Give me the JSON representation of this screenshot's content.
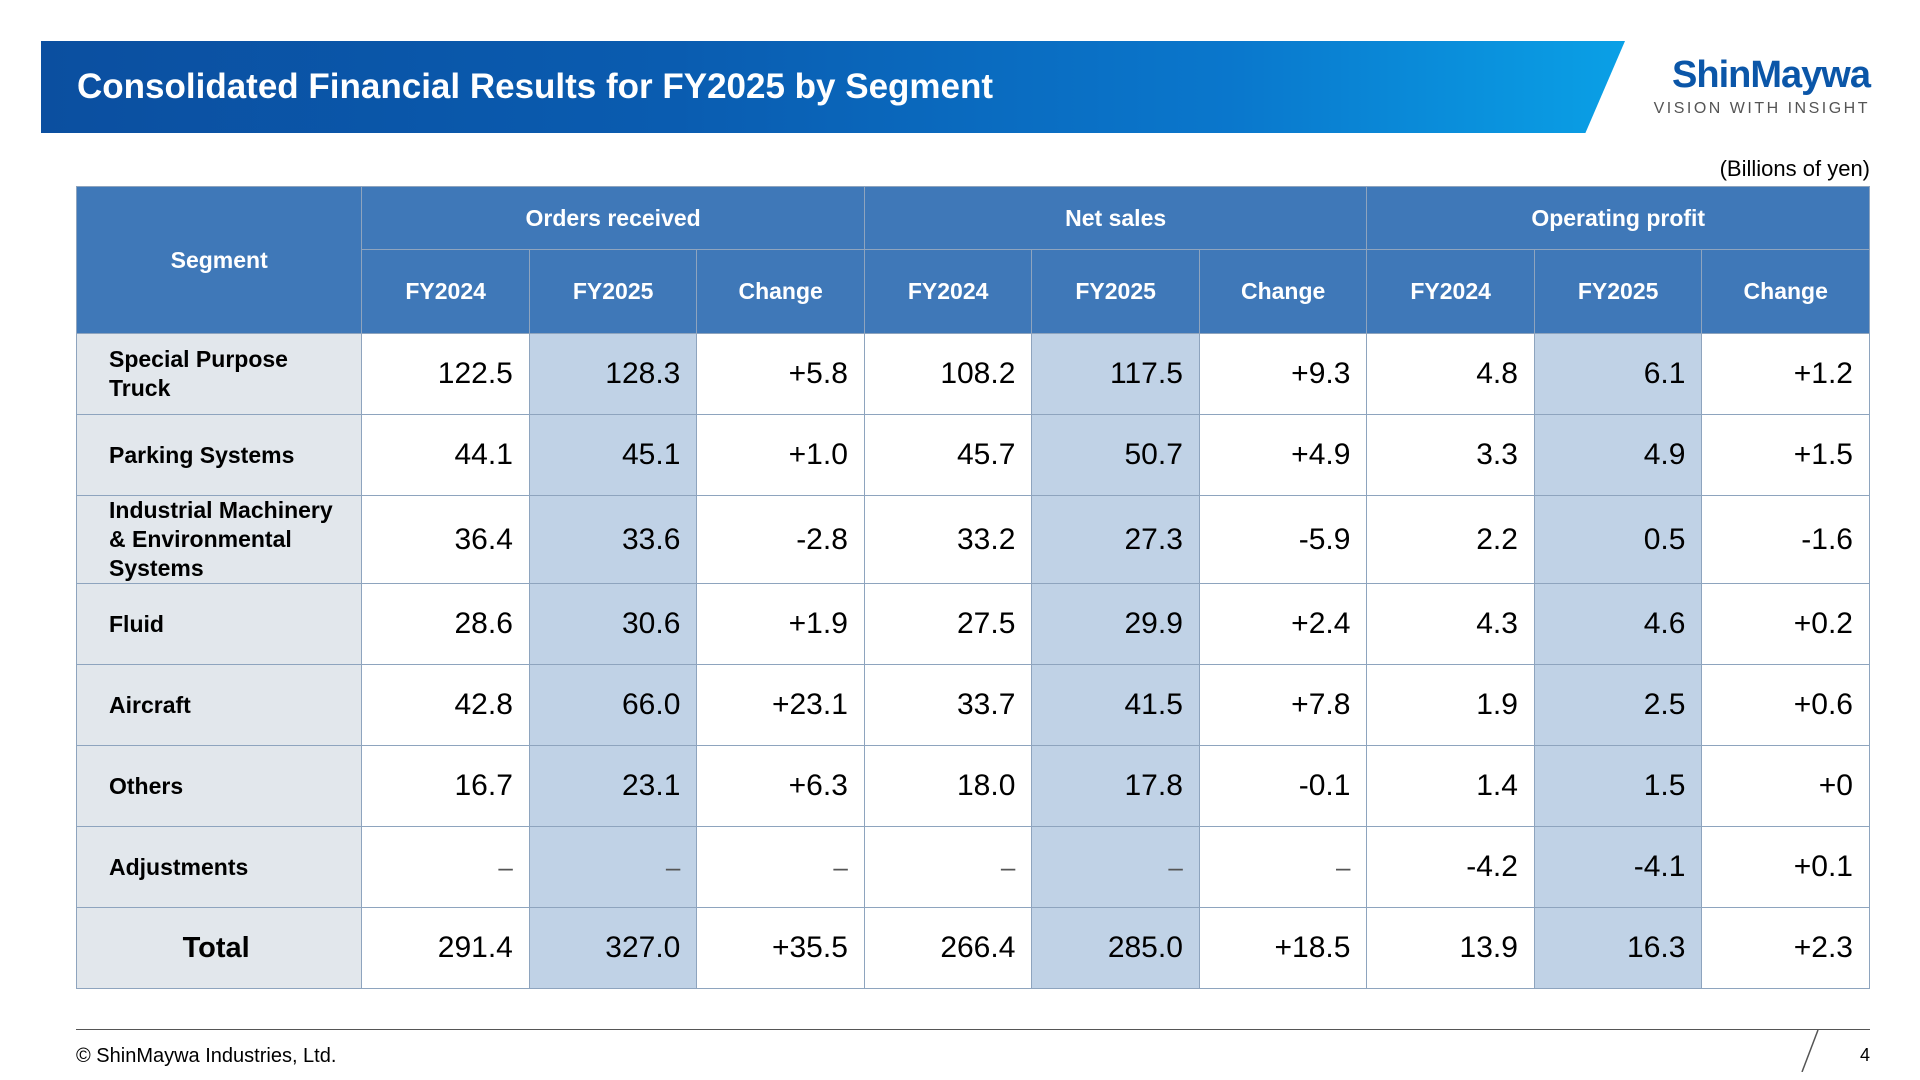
{
  "title": "Consolidated Financial Results for FY2025 by Segment",
  "logo": {
    "name": "ShinMaywa",
    "tagline": "VISION WITH INSIGHT"
  },
  "unit_note": "(Billions of yen)",
  "table": {
    "segment_header": "Segment",
    "groups": [
      "Orders received",
      "Net sales",
      "Operating profit"
    ],
    "subheaders": [
      "FY2024",
      "FY2025",
      "Change"
    ],
    "rows": [
      {
        "segment": "Special Purpose Truck",
        "values": [
          "122.5",
          "128.3",
          "+5.8",
          "108.2",
          "117.5",
          "+9.3",
          "4.8",
          "6.1",
          "+1.2"
        ]
      },
      {
        "segment": "Parking Systems",
        "values": [
          "44.1",
          "45.1",
          "+1.0",
          "45.7",
          "50.7",
          "+4.9",
          "3.3",
          "4.9",
          "+1.5"
        ]
      },
      {
        "segment": "Industrial Machinery & Environmental Systems",
        "values": [
          "36.4",
          "33.6",
          "-2.8",
          "33.2",
          "27.3",
          "-5.9",
          "2.2",
          "0.5",
          "-1.6"
        ]
      },
      {
        "segment": "Fluid",
        "values": [
          "28.6",
          "30.6",
          "+1.9",
          "27.5",
          "29.9",
          "+2.4",
          "4.3",
          "4.6",
          "+0.2"
        ]
      },
      {
        "segment": "Aircraft",
        "values": [
          "42.8",
          "66.0",
          "+23.1",
          "33.7",
          "41.5",
          "+7.8",
          "1.9",
          "2.5",
          "+0.6"
        ]
      },
      {
        "segment": "Others",
        "values": [
          "16.7",
          "23.1",
          "+6.3",
          "18.0",
          "17.8",
          "-0.1",
          "1.4",
          "1.5",
          "+0"
        ]
      },
      {
        "segment": "Adjustments",
        "values": [
          "–",
          "–",
          "–",
          "–",
          "–",
          "–",
          "-4.2",
          "-4.1",
          "+0.1"
        ]
      }
    ],
    "total": {
      "segment": "Total",
      "values": [
        "291.4",
        "327.0",
        "+35.5",
        "266.4",
        "285.0",
        "+18.5",
        "13.9",
        "16.3",
        "+2.3"
      ]
    }
  },
  "footer": {
    "copyright": "© ShinMaywa Industries, Ltd.",
    "page_number": "4"
  },
  "colors": {
    "header_blue": "#3f78b8",
    "highlight_column": "#c0d2e6",
    "segment_cell": "#e2e7ec",
    "banner_start": "#0b4fa0",
    "banner_end": "#0aa0e6",
    "logo_blue": "#0b56a8"
  }
}
